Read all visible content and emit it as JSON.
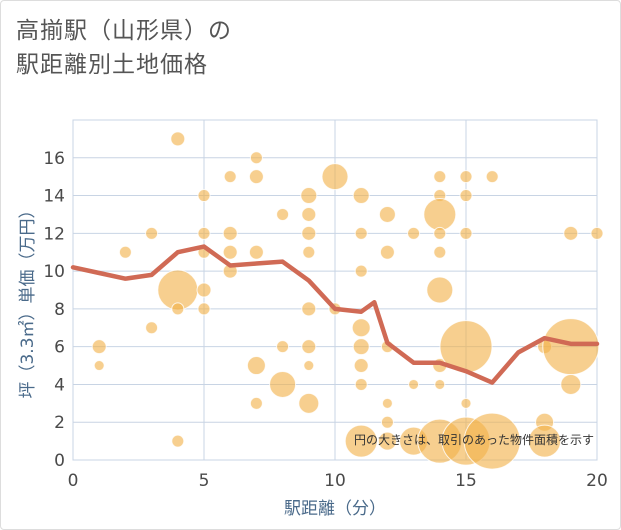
{
  "page": {
    "title_line1": "高揃駅（山形県）の",
    "title_line2": "駅距離別土地価格"
  },
  "chart_data": {
    "type": "scatter",
    "title": "高揃駅（山形県）の駅距離別土地価格",
    "xlabel": "駅距離（分）",
    "ylabel": "坪（3.3㎡）単価（万円）",
    "xlim": [
      0,
      20
    ],
    "ylim": [
      0,
      18
    ],
    "xticks": [
      0,
      5,
      10,
      15,
      20
    ],
    "yticks": [
      0,
      2,
      4,
      6,
      8,
      10,
      12,
      14,
      16
    ],
    "note": "円の大きさは、取引のあった物件面積を示す",
    "colors": {
      "bubble": "#f2b24a",
      "line": "#d06a55",
      "grid": "#c8d4e4"
    },
    "trend": {
      "x": [
        0,
        1,
        2,
        3,
        4,
        5,
        6,
        7,
        8,
        9,
        10,
        11,
        11.5,
        12,
        13,
        14,
        15,
        16,
        17,
        18,
        19,
        20
      ],
      "y": [
        10.2,
        9.9,
        9.6,
        9.8,
        11.0,
        11.3,
        10.3,
        10.4,
        10.5,
        9.5,
        8.0,
        7.85,
        8.35,
        6.2,
        5.15,
        5.15,
        4.7,
        4.1,
        5.7,
        6.45,
        6.15,
        6.15
      ]
    },
    "points": [
      {
        "x": 1,
        "y": 6,
        "s": 7
      },
      {
        "x": 1,
        "y": 5,
        "s": 5
      },
      {
        "x": 2,
        "y": 11,
        "s": 6
      },
      {
        "x": 3,
        "y": 12,
        "s": 6
      },
      {
        "x": 3,
        "y": 7,
        "s": 6
      },
      {
        "x": 4,
        "y": 17,
        "s": 7
      },
      {
        "x": 4,
        "y": 9,
        "s": 20
      },
      {
        "x": 4,
        "y": 8,
        "s": 6
      },
      {
        "x": 4,
        "y": 1,
        "s": 6
      },
      {
        "x": 5,
        "y": 14,
        "s": 6
      },
      {
        "x": 5,
        "y": 12,
        "s": 6
      },
      {
        "x": 5,
        "y": 11,
        "s": 6
      },
      {
        "x": 5,
        "y": 9,
        "s": 7
      },
      {
        "x": 5,
        "y": 8,
        "s": 6
      },
      {
        "x": 6,
        "y": 15,
        "s": 6
      },
      {
        "x": 6,
        "y": 12,
        "s": 7
      },
      {
        "x": 6,
        "y": 11,
        "s": 7
      },
      {
        "x": 6,
        "y": 10,
        "s": 7
      },
      {
        "x": 7,
        "y": 16,
        "s": 6
      },
      {
        "x": 7,
        "y": 15,
        "s": 7
      },
      {
        "x": 7,
        "y": 11,
        "s": 7
      },
      {
        "x": 7,
        "y": 5,
        "s": 9
      },
      {
        "x": 7,
        "y": 3,
        "s": 6
      },
      {
        "x": 8,
        "y": 13,
        "s": 6
      },
      {
        "x": 8,
        "y": 6,
        "s": 6
      },
      {
        "x": 8,
        "y": 4,
        "s": 13
      },
      {
        "x": 9,
        "y": 14,
        "s": 8
      },
      {
        "x": 9,
        "y": 13,
        "s": 7
      },
      {
        "x": 9,
        "y": 12,
        "s": 7
      },
      {
        "x": 9,
        "y": 11,
        "s": 6
      },
      {
        "x": 9,
        "y": 8,
        "s": 7
      },
      {
        "x": 9,
        "y": 6,
        "s": 7
      },
      {
        "x": 9,
        "y": 5,
        "s": 5
      },
      {
        "x": 9,
        "y": 3,
        "s": 10
      },
      {
        "x": 10,
        "y": 15,
        "s": 13
      },
      {
        "x": 10,
        "y": 8,
        "s": 6
      },
      {
        "x": 11,
        "y": 14,
        "s": 8
      },
      {
        "x": 11,
        "y": 12,
        "s": 6
      },
      {
        "x": 11,
        "y": 10,
        "s": 6
      },
      {
        "x": 11,
        "y": 7,
        "s": 9
      },
      {
        "x": 11,
        "y": 6,
        "s": 8
      },
      {
        "x": 11,
        "y": 5,
        "s": 7
      },
      {
        "x": 11,
        "y": 4,
        "s": 6
      },
      {
        "x": 11,
        "y": 1,
        "s": 16
      },
      {
        "x": 12,
        "y": 13,
        "s": 8
      },
      {
        "x": 12,
        "y": 11,
        "s": 7
      },
      {
        "x": 12,
        "y": 6,
        "s": 6
      },
      {
        "x": 12,
        "y": 3,
        "s": 5
      },
      {
        "x": 12,
        "y": 2,
        "s": 6
      },
      {
        "x": 12,
        "y": 1,
        "s": 9
      },
      {
        "x": 13,
        "y": 12,
        "s": 6
      },
      {
        "x": 13,
        "y": 4,
        "s": 5
      },
      {
        "x": 13,
        "y": 1,
        "s": 14
      },
      {
        "x": 14,
        "y": 15,
        "s": 6
      },
      {
        "x": 14,
        "y": 14,
        "s": 6
      },
      {
        "x": 14,
        "y": 13,
        "s": 16
      },
      {
        "x": 14,
        "y": 12,
        "s": 6
      },
      {
        "x": 14,
        "y": 11,
        "s": 6
      },
      {
        "x": 14,
        "y": 9,
        "s": 13
      },
      {
        "x": 14,
        "y": 5,
        "s": 7
      },
      {
        "x": 14,
        "y": 4,
        "s": 5
      },
      {
        "x": 14,
        "y": 1,
        "s": 22
      },
      {
        "x": 15,
        "y": 15,
        "s": 6
      },
      {
        "x": 15,
        "y": 14,
        "s": 6
      },
      {
        "x": 15,
        "y": 12,
        "s": 6
      },
      {
        "x": 15,
        "y": 6,
        "s": 26
      },
      {
        "x": 15,
        "y": 3,
        "s": 5
      },
      {
        "x": 15,
        "y": 1,
        "s": 24
      },
      {
        "x": 16,
        "y": 15,
        "s": 6
      },
      {
        "x": 16,
        "y": 1,
        "s": 28
      },
      {
        "x": 18,
        "y": 6,
        "s": 7
      },
      {
        "x": 18,
        "y": 2,
        "s": 9
      },
      {
        "x": 18,
        "y": 1,
        "s": 16
      },
      {
        "x": 19,
        "y": 12,
        "s": 7
      },
      {
        "x": 19,
        "y": 6,
        "s": 28
      },
      {
        "x": 19,
        "y": 4,
        "s": 10
      },
      {
        "x": 20,
        "y": 12,
        "s": 6
      }
    ]
  }
}
